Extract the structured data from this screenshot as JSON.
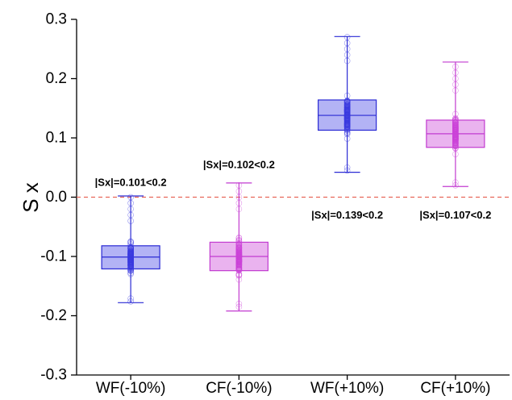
{
  "chart_data": {
    "type": "box",
    "title": "",
    "xlabel": "",
    "ylabel": "S x",
    "ylim": [
      -0.3,
      0.3
    ],
    "yticks": [
      "0.3",
      "0.2",
      "0.1",
      "0.0",
      "-0.1",
      "-0.2",
      "-0.3"
    ],
    "ytick_values": [
      0.3,
      0.2,
      0.1,
      0.0,
      -0.1,
      -0.2,
      -0.3
    ],
    "reference_line": {
      "y": 0.0,
      "style": "dashed",
      "color": "#e8675a"
    },
    "grid": false,
    "categories": [
      "WF(-10%)",
      "CF(-10%)",
      "WF(+10%)",
      "CF(+10%)"
    ],
    "boxes": [
      {
        "label": "WF(-10%)",
        "min": -0.178,
        "q1": -0.121,
        "median": -0.101,
        "q3": -0.082,
        "max": 0.002,
        "outliers_low": [
          -0.176,
          -0.171
        ],
        "outliers_high": [
          -0.04,
          -0.03,
          -0.02,
          -0.01,
          0.0
        ],
        "fill": "#b3b3f5",
        "stroke": "#2a2ad4",
        "points": "#3a3ae0",
        "annotation": "|Sx|=0.101<0.2",
        "annotation_y": 0.025
      },
      {
        "label": "CF(-10%)",
        "min": -0.192,
        "q1": -0.124,
        "median": -0.1,
        "q3": -0.076,
        "max": 0.024,
        "outliers_low": [
          -0.18,
          -0.185
        ],
        "outliers_high": [
          -0.02,
          -0.01,
          0.0,
          0.01,
          0.02
        ],
        "fill": "#eab3ef",
        "stroke": "#c23bd0",
        "points": "#cc44d8",
        "annotation": "|Sx|=0.102<0.2",
        "annotation_y": 0.055
      },
      {
        "label": "WF(+10%)",
        "min": 0.042,
        "q1": 0.113,
        "median": 0.138,
        "q3": 0.164,
        "max": 0.271,
        "outliers_low": [
          0.045,
          0.05
        ],
        "outliers_high": [
          0.23,
          0.24,
          0.25,
          0.26,
          0.27
        ],
        "fill": "#b3b3f5",
        "stroke": "#2a2ad4",
        "points": "#3a3ae0",
        "annotation": "|Sx|=0.139<0.2",
        "annotation_y": -0.03
      },
      {
        "label": "CF(+10%)",
        "min": 0.018,
        "q1": 0.084,
        "median": 0.107,
        "q3": 0.13,
        "max": 0.228,
        "outliers_low": [
          0.02,
          0.025
        ],
        "outliers_high": [
          0.18,
          0.19,
          0.2,
          0.21,
          0.22
        ],
        "fill": "#eab3ef",
        "stroke": "#c23bd0",
        "points": "#cc44d8",
        "annotation": "|Sx|=0.107<0.2",
        "annotation_y": -0.03
      }
    ]
  }
}
